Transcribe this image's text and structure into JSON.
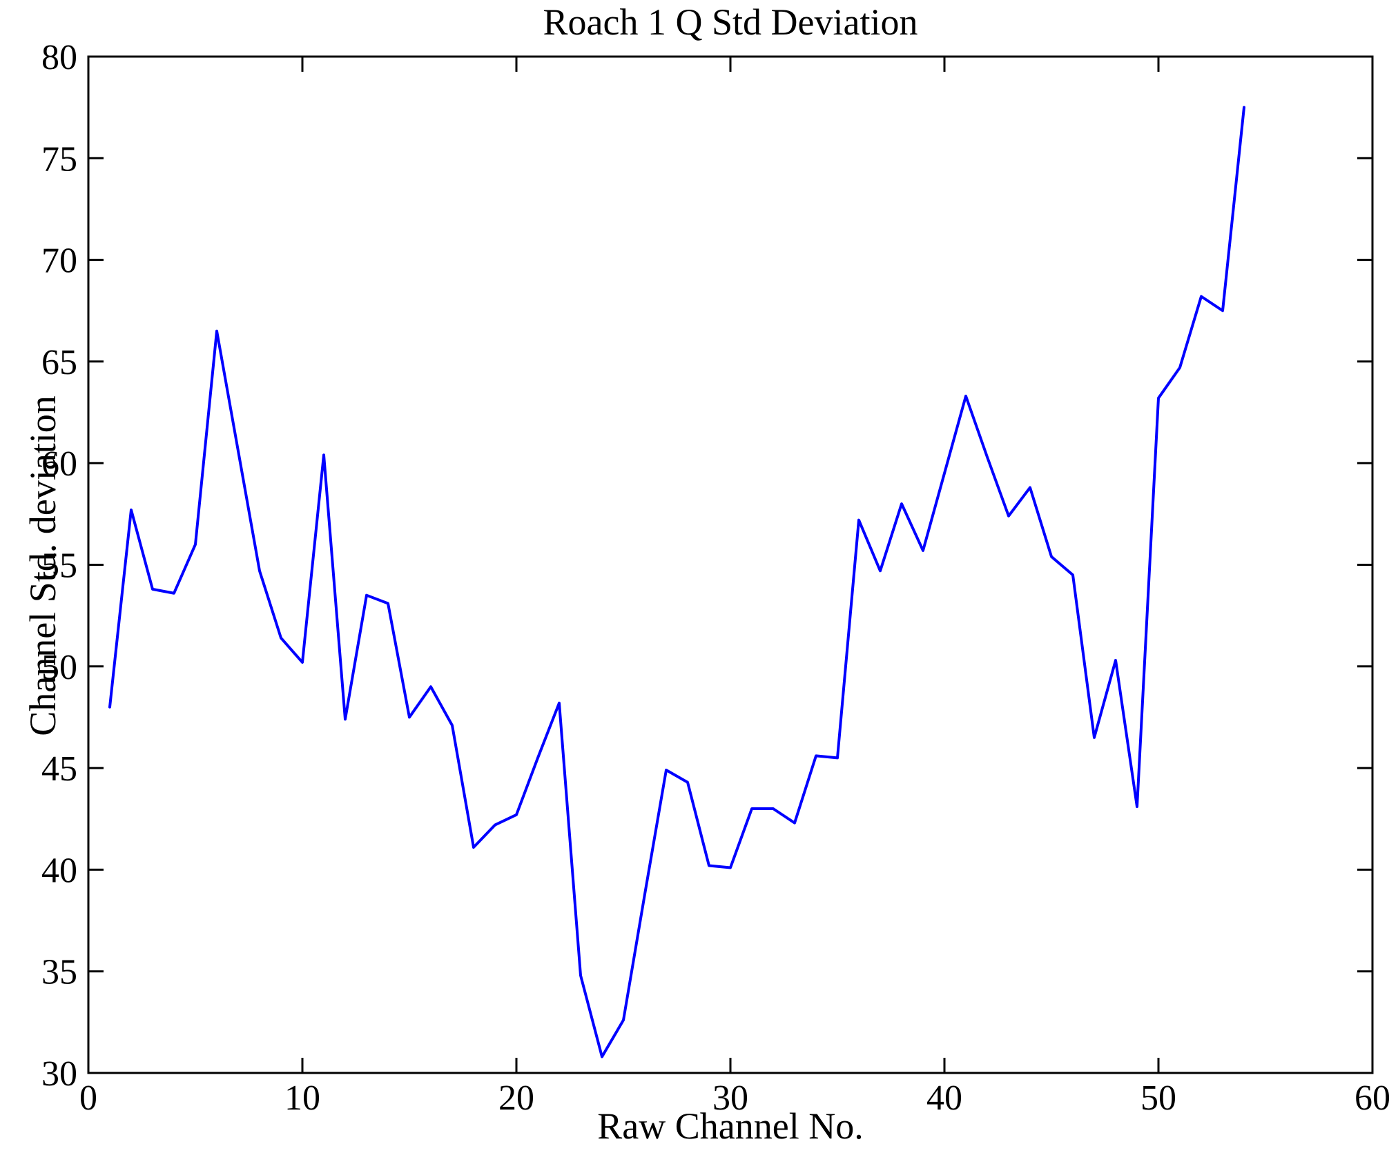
{
  "page": {
    "background": "#ffffff"
  },
  "chart_data": {
    "type": "line",
    "title": "Roach 1 Q Std Deviation",
    "xlabel": "Raw Channel No.",
    "ylabel": "Channel Std. deviation",
    "xlim": [
      0,
      60
    ],
    "ylim": [
      30,
      80
    ],
    "xticks": [
      0,
      10,
      20,
      30,
      40,
      50,
      60
    ],
    "yticks": [
      30,
      35,
      40,
      45,
      50,
      55,
      60,
      65,
      70,
      75,
      80
    ],
    "grid": false,
    "legend": null,
    "line_color": "#0000ff",
    "axis_color": "#000000",
    "series": [
      {
        "name": "Channel Std. deviation",
        "x": [
          1,
          2,
          3,
          4,
          5,
          6,
          7,
          8,
          9,
          10,
          11,
          12,
          13,
          14,
          15,
          16,
          17,
          18,
          19,
          20,
          21,
          22,
          23,
          24,
          25,
          26,
          27,
          28,
          29,
          30,
          31,
          32,
          33,
          34,
          35,
          36,
          37,
          38,
          39,
          40,
          41,
          42,
          43,
          44,
          45,
          46,
          47,
          48,
          49,
          50,
          51,
          52,
          53,
          54
        ],
        "values": [
          48.0,
          57.7,
          53.8,
          53.6,
          56.0,
          66.5,
          60.6,
          54.7,
          51.4,
          50.2,
          60.4,
          47.4,
          53.5,
          53.1,
          47.5,
          49.0,
          47.1,
          41.1,
          42.2,
          42.7,
          45.5,
          48.2,
          34.8,
          30.8,
          32.6,
          38.8,
          44.9,
          44.3,
          40.2,
          40.1,
          43.0,
          43.0,
          42.3,
          45.6,
          45.5,
          57.2,
          54.7,
          58.0,
          55.7,
          59.5,
          63.3,
          60.3,
          57.4,
          58.8,
          55.4,
          54.5,
          46.5,
          50.3,
          43.1,
          63.2,
          64.7,
          68.2,
          67.5,
          77.5
        ]
      }
    ]
  }
}
